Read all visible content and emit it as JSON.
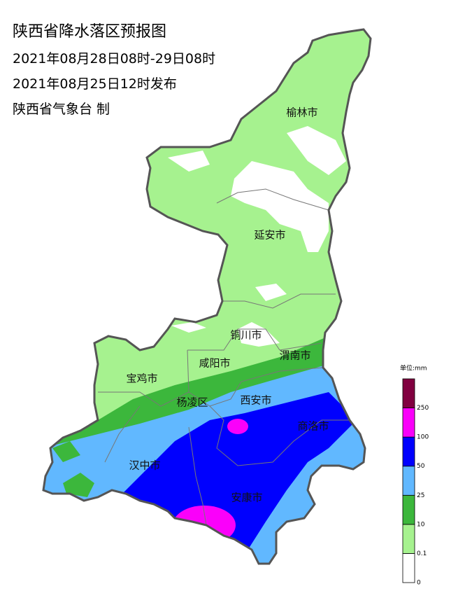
{
  "title": "陕西省降水落区预报图",
  "valid_period": "2021年08月28日08时-29日08时",
  "issued": "2021年08月25日12时发布",
  "issuer": "陕西省气象台 制",
  "cities": [
    "榆林市",
    "延安市",
    "铜川市",
    "渭南市",
    "咸阳市",
    "宝鸡市",
    "杨凌区",
    "西安市",
    "商洛市",
    "汉中市",
    "安康市"
  ],
  "legend": {
    "unit": "单位:mm",
    "ticks": [
      0,
      0.1,
      10,
      25,
      50,
      100,
      250
    ],
    "colors": [
      "#ffffff",
      "#a6f28f",
      "#3cb73c",
      "#61b8ff",
      "#0000fe",
      "#fa00fa",
      "#810040"
    ]
  }
}
